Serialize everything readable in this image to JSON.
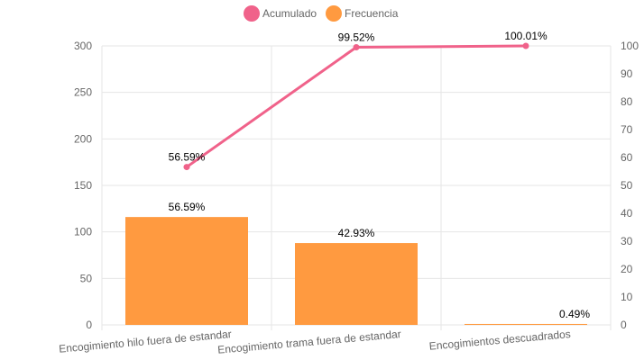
{
  "chart_data": {
    "type": "bar",
    "categories": [
      "Encogimiento hilo fuera de estandar",
      "Encogimiento trama fuera de estandar",
      "Encogimientos descuadrados"
    ],
    "series": [
      {
        "name": "Frecuencia",
        "type": "bar",
        "axis": "left",
        "color": "#ff9a40",
        "values": [
          116,
          88,
          1
        ],
        "labels": [
          "56.59%",
          "42.93%",
          "0.49%"
        ]
      },
      {
        "name": "Acumulado",
        "type": "line",
        "axis": "right",
        "color": "#f0628a",
        "values": [
          56.59,
          99.52,
          100.01
        ],
        "labels": [
          "56.59%",
          "99.52%",
          "100.01%"
        ]
      }
    ],
    "legend": [
      "Acumulado",
      "Frecuencia"
    ],
    "legend_position": "top-center",
    "y_left": {
      "ylim": [
        0,
        300
      ],
      "ticks": [
        "0",
        "50",
        "100",
        "150",
        "200",
        "250",
        "300"
      ]
    },
    "y_right": {
      "ylim": [
        0,
        100
      ],
      "ticks": [
        "0",
        "10",
        "20",
        "30",
        "40",
        "50",
        "60",
        "70",
        "80",
        "90",
        "100"
      ]
    },
    "grid": true
  }
}
